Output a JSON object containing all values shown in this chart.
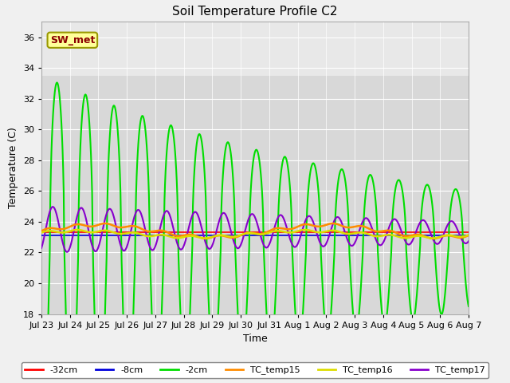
{
  "title": "Soil Temperature Profile C2",
  "xlabel": "Time",
  "ylabel": "Temperature (C)",
  "ylim": [
    18,
    37
  ],
  "yticks": [
    18,
    20,
    22,
    24,
    26,
    28,
    30,
    32,
    34,
    36
  ],
  "xlim_days": [
    0,
    15
  ],
  "x_tick_labels": [
    "Jul 23",
    "Jul 24",
    "Jul 25",
    "Jul 26",
    "Jul 27",
    "Jul 28",
    "Jul 29",
    "Jul 30",
    "Jul 31",
    "Aug 1",
    "Aug 2",
    "Aug 3",
    "Aug 4",
    "Aug 5",
    "Aug 6",
    "Aug 7"
  ],
  "fig_bg_color": "#f0f0f0",
  "plot_bg_color": "#dcdcdc",
  "plot_bg_upper": "#e8e8e8",
  "annotation_text": "SW_met",
  "annotation_color": "#8b0000",
  "annotation_bg": "#ffff99",
  "annotation_border": "#999900",
  "legend_items": [
    "-32cm",
    "-8cm",
    "-2cm",
    "TC_temp15",
    "TC_temp16",
    "TC_temp17"
  ],
  "legend_colors": [
    "#ff0000",
    "#0000dd",
    "#00dd00",
    "#ff8c00",
    "#dddd00",
    "#8800cc"
  ],
  "line_colors": {
    "minus32": "#ff0000",
    "minus8": "#0000dd",
    "minus2": "#00dd00",
    "tc15": "#ff8c00",
    "tc16": "#dddd00",
    "tc17": "#8800cc"
  }
}
